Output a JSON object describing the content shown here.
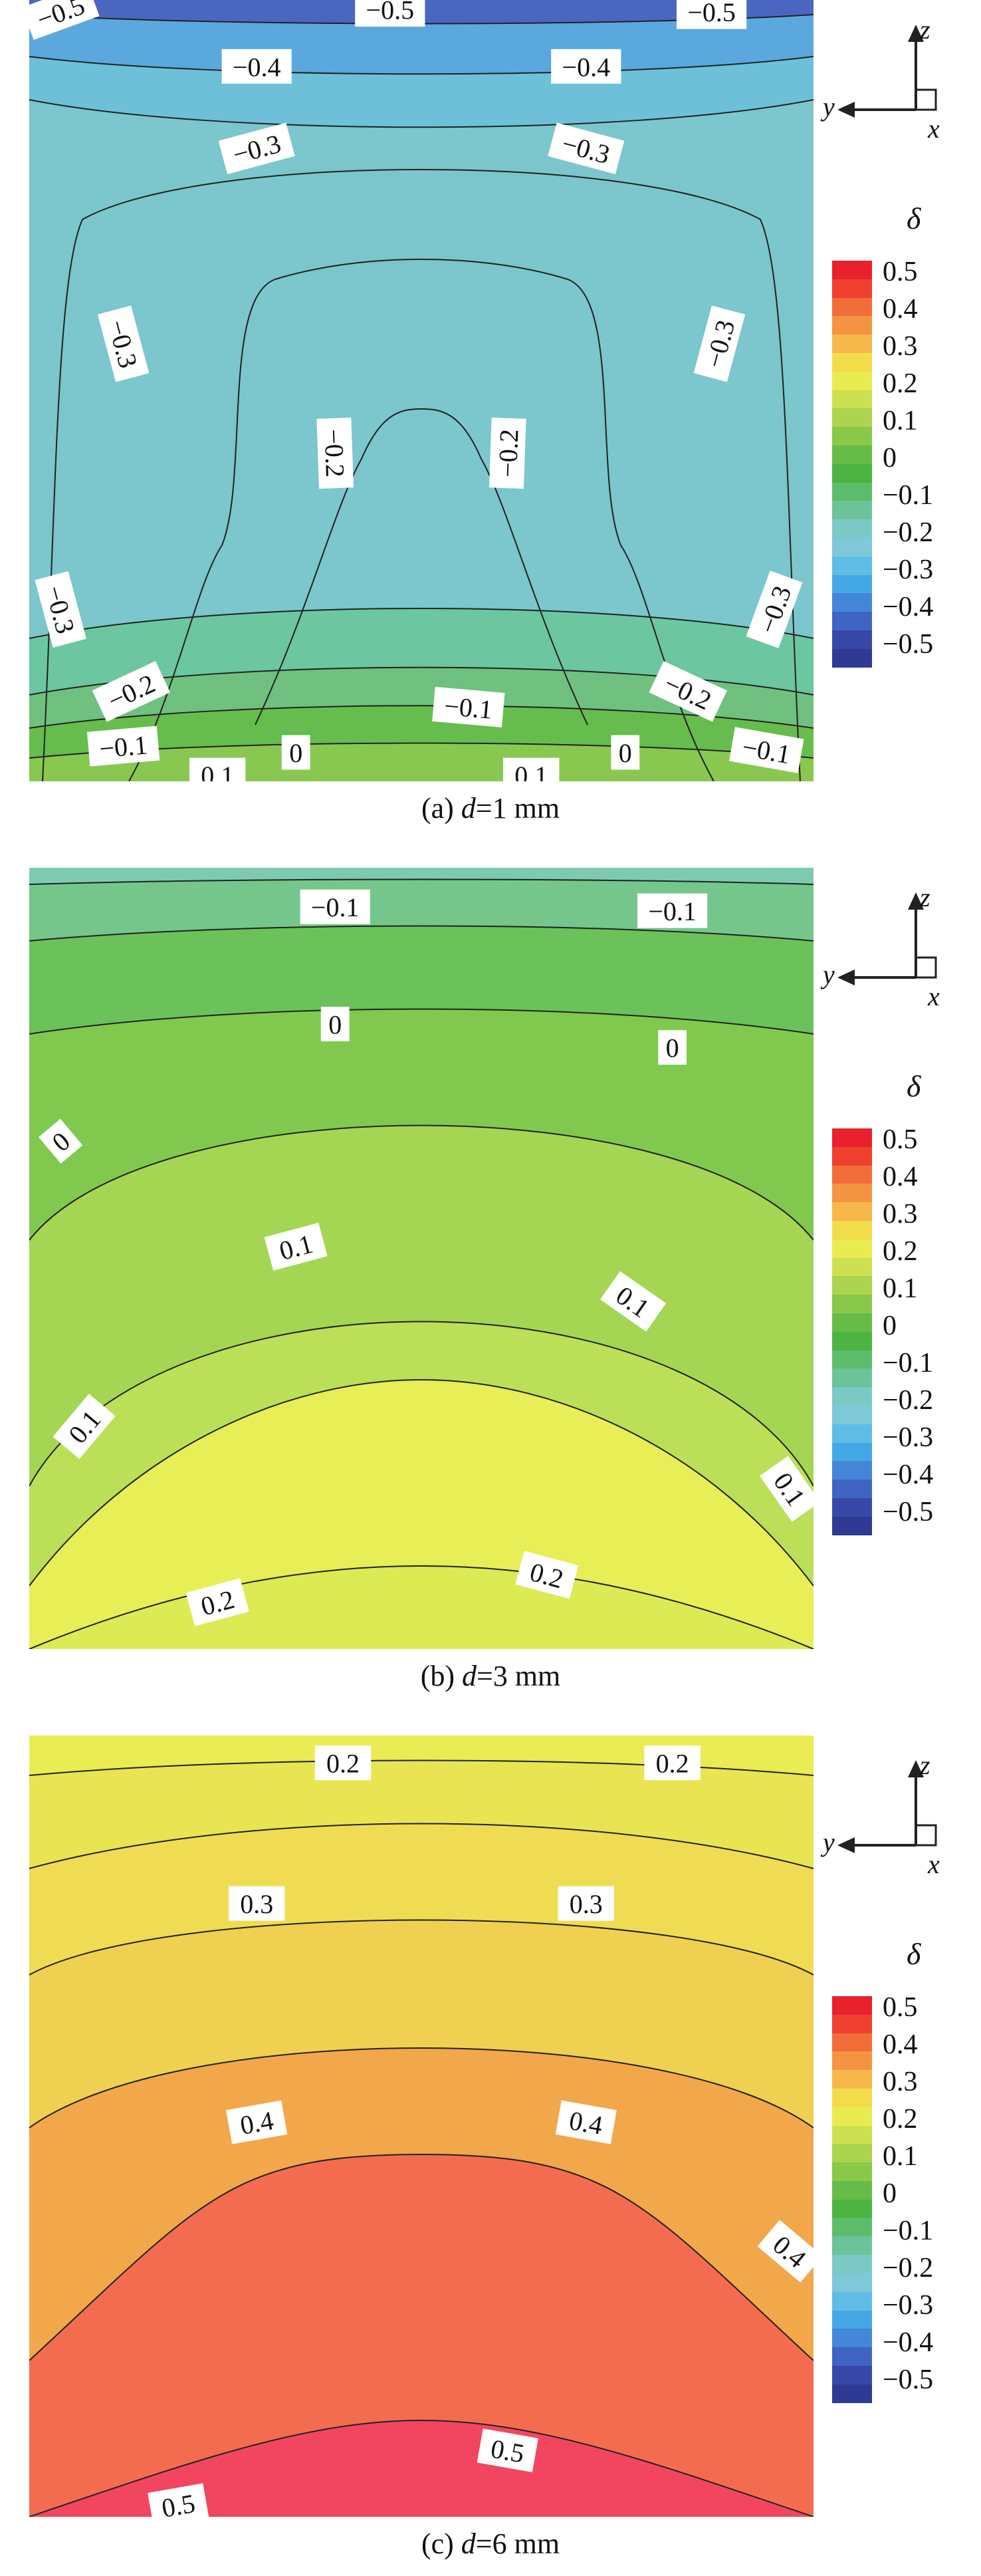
{
  "chart_data": [
    {
      "type": "contour",
      "caption": {
        "prefix": "(a) ",
        "var": "d",
        "suffix": "=1 mm"
      },
      "colorbar": {
        "symbol": "δ",
        "ticks": [
          "0.5",
          "0.4",
          "0.3",
          "0.2",
          "0.1",
          "0",
          "−0.1",
          "−0.2",
          "−0.3",
          "−0.4",
          "−0.5"
        ]
      },
      "axes": {
        "z": "z",
        "y": "y",
        "x": "x"
      },
      "contour_labels": [
        {
          "text": "−0.5",
          "u": 0.04,
          "v": 0.015,
          "rot": -20
        },
        {
          "text": "−0.5",
          "u": 0.46,
          "v": 0.012,
          "rot": 0
        },
        {
          "text": "−0.5",
          "u": 0.87,
          "v": 0.015,
          "rot": 0
        },
        {
          "text": "−0.4",
          "u": 0.29,
          "v": 0.085,
          "rot": 0
        },
        {
          "text": "−0.4",
          "u": 0.71,
          "v": 0.085,
          "rot": 0
        },
        {
          "text": "−0.3",
          "u": 0.29,
          "v": 0.19,
          "rot": -15
        },
        {
          "text": "−0.3",
          "u": 0.71,
          "v": 0.19,
          "rot": 15
        },
        {
          "text": "−0.3",
          "u": 0.12,
          "v": 0.44,
          "rot": 75
        },
        {
          "text": "−0.3",
          "u": 0.88,
          "v": 0.44,
          "rot": -75
        },
        {
          "text": "−0.2",
          "u": 0.39,
          "v": 0.58,
          "rot": 88
        },
        {
          "text": "−0.2",
          "u": 0.61,
          "v": 0.58,
          "rot": -88
        },
        {
          "text": "−0.3",
          "u": 0.04,
          "v": 0.78,
          "rot": 75
        },
        {
          "text": "−0.3",
          "u": 0.95,
          "v": 0.78,
          "rot": -70
        },
        {
          "text": "−0.2",
          "u": 0.13,
          "v": 0.885,
          "rot": -25
        },
        {
          "text": "−0.2",
          "u": 0.84,
          "v": 0.885,
          "rot": 25
        },
        {
          "text": "−0.1",
          "u": 0.56,
          "v": 0.905,
          "rot": 5
        },
        {
          "text": "−0.1",
          "u": 0.12,
          "v": 0.955,
          "rot": -5
        },
        {
          "text": "−0.1",
          "u": 0.94,
          "v": 0.96,
          "rot": 10
        },
        {
          "text": "0",
          "u": 0.34,
          "v": 0.963,
          "rot": 0
        },
        {
          "text": "0",
          "u": 0.76,
          "v": 0.963,
          "rot": 0
        },
        {
          "text": "0.1",
          "u": 0.24,
          "v": 0.992,
          "rot": 0
        },
        {
          "text": "0.1",
          "u": 0.64,
          "v": 0.992,
          "rot": 0
        }
      ]
    },
    {
      "type": "contour",
      "caption": {
        "prefix": "(b) ",
        "var": "d",
        "suffix": "=3 mm"
      },
      "colorbar": {
        "symbol": "δ",
        "ticks": [
          "0.5",
          "0.4",
          "0.3",
          "0.2",
          "0.1",
          "0",
          "−0.1",
          "−0.2",
          "−0.3",
          "−0.4",
          "−0.5"
        ]
      },
      "axes": {
        "z": "z",
        "y": "y",
        "x": "x"
      },
      "contour_labels": [
        {
          "text": "−0.1",
          "u": 0.39,
          "v": 0.05,
          "rot": 0
        },
        {
          "text": "−0.1",
          "u": 0.82,
          "v": 0.055,
          "rot": 0
        },
        {
          "text": "0",
          "u": 0.39,
          "v": 0.2,
          "rot": 0
        },
        {
          "text": "0",
          "u": 0.82,
          "v": 0.23,
          "rot": 0
        },
        {
          "text": "0",
          "u": 0.04,
          "v": 0.35,
          "rot": -40
        },
        {
          "text": "0.1",
          "u": 0.34,
          "v": 0.485,
          "rot": -15
        },
        {
          "text": "0.1",
          "u": 0.77,
          "v": 0.555,
          "rot": 35
        },
        {
          "text": "0.1",
          "u": 0.07,
          "v": 0.715,
          "rot": -50
        },
        {
          "text": "0.1",
          "u": 0.97,
          "v": 0.795,
          "rot": 55
        },
        {
          "text": "0.2",
          "u": 0.24,
          "v": 0.94,
          "rot": -15
        },
        {
          "text": "0.2",
          "u": 0.66,
          "v": 0.905,
          "rot": 15
        }
      ]
    },
    {
      "type": "contour",
      "caption": {
        "prefix": "(c) ",
        "var": "d",
        "suffix": "=6 mm"
      },
      "colorbar": {
        "symbol": "δ",
        "ticks": [
          "0.5",
          "0.4",
          "0.3",
          "0.2",
          "0.1",
          "0",
          "−0.1",
          "−0.2",
          "−0.3",
          "−0.4",
          "−0.5"
        ]
      },
      "axes": {
        "z": "z",
        "y": "y",
        "x": "x"
      },
      "contour_labels": [
        {
          "text": "0.2",
          "u": 0.4,
          "v": 0.035,
          "rot": 0
        },
        {
          "text": "0.2",
          "u": 0.82,
          "v": 0.035,
          "rot": 0
        },
        {
          "text": "0.3",
          "u": 0.29,
          "v": 0.215,
          "rot": 0
        },
        {
          "text": "0.3",
          "u": 0.71,
          "v": 0.215,
          "rot": 0
        },
        {
          "text": "0.4",
          "u": 0.29,
          "v": 0.495,
          "rot": -10
        },
        {
          "text": "0.4",
          "u": 0.71,
          "v": 0.495,
          "rot": 10
        },
        {
          "text": "0.4",
          "u": 0.97,
          "v": 0.66,
          "rot": 40
        },
        {
          "text": "0.5",
          "u": 0.19,
          "v": 0.985,
          "rot": -10
        },
        {
          "text": "0.5",
          "u": 0.61,
          "v": 0.915,
          "rot": 10
        }
      ]
    }
  ]
}
